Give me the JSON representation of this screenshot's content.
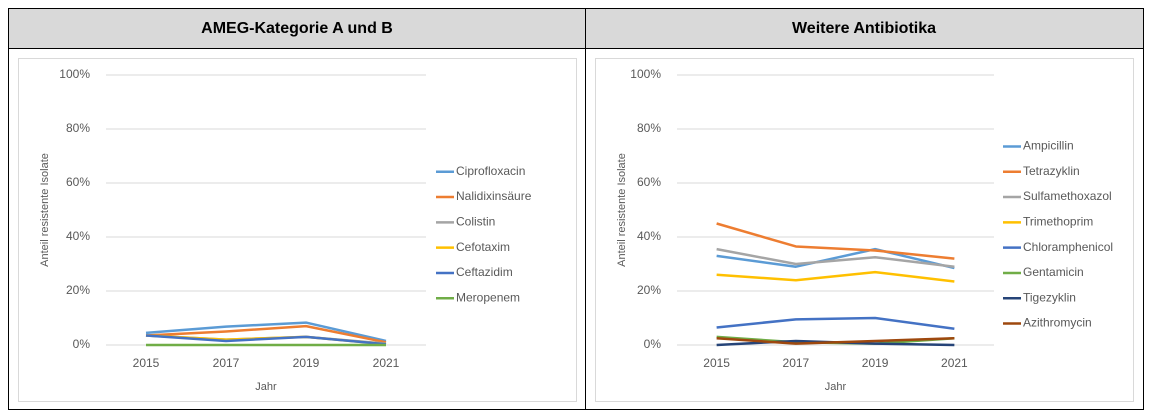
{
  "table": {
    "headers": [
      "AMEG-Kategorie A und B",
      "Weitere Antibiotika"
    ]
  },
  "chart_data": [
    {
      "type": "line",
      "x_label": "Jahr",
      "y_label": "Anteil resistente Isolate",
      "categories": [
        "2015",
        "2017",
        "2019",
        "2021"
      ],
      "ylim": [
        0,
        100
      ],
      "yticks": [
        {
          "value": 0,
          "label": "0%"
        },
        {
          "value": 20,
          "label": "20%"
        },
        {
          "value": 40,
          "label": "40%"
        },
        {
          "value": 60,
          "label": "60%"
        },
        {
          "value": 80,
          "label": "80%"
        },
        {
          "value": 100,
          "label": "100%"
        }
      ],
      "grid": true,
      "legend": "right",
      "series": [
        {
          "name": "Ciprofloxacin",
          "color": "#5b9bd5",
          "values": [
            4.5,
            6.8,
            8.3,
            1.5
          ]
        },
        {
          "name": "Nalidixinsäure",
          "color": "#ed7d31",
          "values": [
            3.5,
            5,
            7,
            1
          ]
        },
        {
          "name": "Colistin",
          "color": "#a5a5a5",
          "values": [
            3.5,
            2,
            3,
            0.5
          ]
        },
        {
          "name": "Cefotaxim",
          "color": "#ffc000",
          "values": [
            3.5,
            2,
            3,
            0.3
          ]
        },
        {
          "name": "Ceftazidim",
          "color": "#4472c4",
          "values": [
            3.5,
            1.5,
            3,
            0.3
          ]
        },
        {
          "name": "Meropenem",
          "color": "#70ad47",
          "values": [
            0,
            0,
            0,
            0
          ]
        }
      ]
    },
    {
      "type": "line",
      "x_label": "Jahr",
      "y_label": "Anteil resistente Isolate",
      "categories": [
        "2015",
        "2017",
        "2019",
        "2021"
      ],
      "ylim": [
        0,
        100
      ],
      "yticks": [
        {
          "value": 0,
          "label": "0%"
        },
        {
          "value": 20,
          "label": "20%"
        },
        {
          "value": 40,
          "label": "40%"
        },
        {
          "value": 60,
          "label": "60%"
        },
        {
          "value": 80,
          "label": "80%"
        },
        {
          "value": 100,
          "label": "100%"
        }
      ],
      "grid": true,
      "legend": "right",
      "series": [
        {
          "name": "Ampicillin",
          "color": "#5b9bd5",
          "values": [
            33,
            29,
            35.5,
            28.5
          ]
        },
        {
          "name": "Tetrazyklin",
          "color": "#ed7d31",
          "values": [
            45,
            36.5,
            35,
            32
          ]
        },
        {
          "name": "Sulfamethoxazol",
          "color": "#a5a5a5",
          "values": [
            35.5,
            30,
            32.5,
            29
          ]
        },
        {
          "name": "Trimethoprim",
          "color": "#ffc000",
          "values": [
            26,
            24,
            27,
            23.5
          ]
        },
        {
          "name": "Chloramphenicol",
          "color": "#4472c4",
          "values": [
            6.5,
            9.5,
            10,
            6
          ]
        },
        {
          "name": "Gentamicin",
          "color": "#70ad47",
          "values": [
            3,
            1,
            0.5,
            2.5
          ]
        },
        {
          "name": "Tigezyklin",
          "color": "#264478",
          "values": [
            0,
            1.5,
            0.5,
            0
          ]
        },
        {
          "name": "Azithromycin",
          "color": "#9e480e",
          "values": [
            2.5,
            0.5,
            1.5,
            2.5
          ]
        }
      ]
    }
  ]
}
